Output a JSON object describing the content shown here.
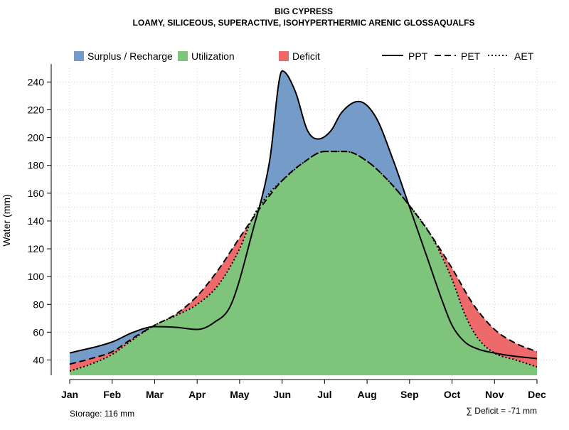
{
  "chart_data": {
    "type": "area",
    "title": "BIG CYPRESS",
    "subtitle": "LOAMY, SILICEOUS, SUPERACTIVE, ISOHYPERTHERMIC ARENIC GLOSSAQUALFS",
    "xlabel": "",
    "ylabel": "Water (mm)",
    "categories": [
      "Jan",
      "Feb",
      "Mar",
      "Apr",
      "May",
      "Jun",
      "Jul",
      "Aug",
      "Sep",
      "Oct",
      "Nov",
      "Dec"
    ],
    "ylim": [
      29,
      254
    ],
    "yticks": [
      40,
      60,
      80,
      100,
      120,
      140,
      160,
      180,
      200,
      220,
      240
    ],
    "grid": true,
    "legend_position": "top",
    "colors": {
      "surplus": "#759CC8",
      "utilization": "#7FC47B",
      "deficit": "#EE6A6A",
      "line": "#000000",
      "grid": "#d3d3d3"
    },
    "legend_areas": [
      {
        "key": "surplus",
        "label": "Surplus / Recharge"
      },
      {
        "key": "utilization",
        "label": "Utilization"
      },
      {
        "key": "deficit",
        "label": "Deficit"
      }
    ],
    "legend_lines": [
      {
        "key": "ppt",
        "label": "PPT",
        "dash": "solid"
      },
      {
        "key": "pet",
        "label": "PET",
        "dash": "dashed"
      },
      {
        "key": "aet",
        "label": "AET",
        "dash": "dotted"
      }
    ],
    "series": [
      {
        "name": "PPT",
        "x": [
          0.0,
          1.0,
          1.5,
          2.0,
          2.5,
          3.0,
          3.4,
          3.8,
          4.3,
          4.7,
          5.0,
          5.3,
          5.6,
          5.85,
          6.15,
          6.4,
          6.8,
          7.2,
          7.6,
          8.0,
          8.4,
          8.8,
          9.0,
          9.3,
          9.6,
          10.0,
          10.4,
          11.0
        ],
        "values": [
          45,
          53,
          60,
          64,
          63.5,
          62,
          67,
          80,
          132,
          182,
          248,
          234,
          205,
          199,
          205,
          218,
          226,
          215,
          185,
          150,
          115,
          80,
          65,
          53,
          48,
          45,
          43,
          41
        ]
      },
      {
        "name": "PET",
        "x": [
          0.0,
          0.5,
          1.0,
          1.5,
          2.0,
          2.5,
          3.0,
          3.5,
          4.0,
          4.5,
          5.0,
          5.5,
          6.0,
          6.5,
          7.0,
          7.5,
          8.0,
          8.5,
          9.0,
          9.5,
          10.0,
          10.5,
          11.0
        ],
        "values": [
          37,
          41,
          46,
          56,
          65,
          73,
          86,
          105,
          128,
          150,
          169,
          182,
          190,
          190,
          183,
          169,
          151,
          130,
          106,
          80,
          62,
          52,
          46
        ]
      },
      {
        "name": "AET",
        "x": [
          0.0,
          0.5,
          1.0,
          1.5,
          2.0,
          2.5,
          3.0,
          3.5,
          4.0,
          4.3,
          4.7,
          5.0,
          5.5,
          6.0,
          6.5,
          7.0,
          7.5,
          8.0,
          8.5,
          9.0,
          9.3,
          9.6,
          10.0,
          10.5,
          11.0
        ],
        "values": [
          32,
          37,
          44,
          55,
          65,
          72,
          80,
          94,
          120,
          142,
          160,
          169,
          182,
          190,
          190,
          183,
          169,
          151,
          130,
          98,
          73,
          56,
          45,
          40,
          35
        ]
      }
    ],
    "footer_left": "Storage: 116 mm",
    "footer_right": "∑ Deficit = -71 mm"
  }
}
